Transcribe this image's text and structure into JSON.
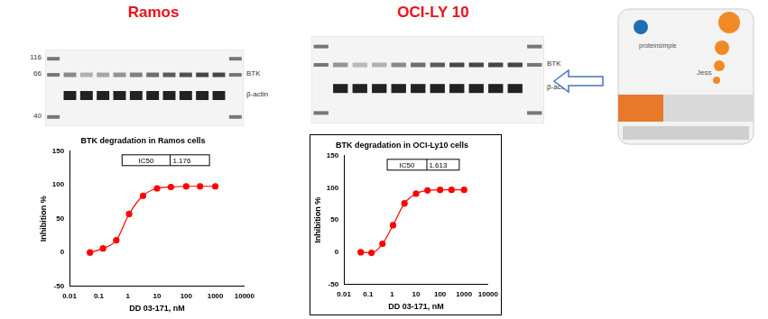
{
  "panels": [
    {
      "title": "Ramos",
      "blot": {
        "markers": [
          116,
          66,
          40
        ],
        "bands": [
          "BTK",
          "β-actin"
        ]
      }
    },
    {
      "title": "OCI-LY 10",
      "blot": {
        "bands": [
          "BTK",
          "β-actin"
        ]
      }
    }
  ],
  "device": {
    "brand": "proteinsimple",
    "name": "Jess"
  },
  "chart_data": [
    {
      "type": "line",
      "title": "BTK degradation in Ramos cells",
      "x_label": "DD 03-171, nM",
      "y_label": "Inhibition %",
      "x": [
        0.05,
        0.14,
        0.4,
        1.1,
        3.3,
        10,
        30,
        100,
        300,
        1000
      ],
      "series": [
        {
          "name": "Ramos",
          "color": "#ff0000",
          "marker": "circle",
          "line_style": "solid",
          "values": [
            0,
            6,
            18,
            57,
            84,
            95,
            97,
            98,
            98,
            98
          ]
        }
      ],
      "ic50_label": "IC50",
      "ic50": 1.176,
      "log": "x",
      "xlim": [
        0.01,
        10000
      ],
      "xticks": [
        0.01,
        0.1,
        1,
        10,
        100,
        1000,
        10000
      ],
      "ylim": [
        -50,
        150
      ],
      "yticks": [
        -50,
        0,
        50,
        100,
        150
      ],
      "grid": false
    },
    {
      "type": "line",
      "title": "BTK degradation in OCI-Ly10 cells",
      "x_label": "DD 03-171, nM",
      "y_label": "Inhibition %",
      "x": [
        0.05,
        0.14,
        0.4,
        1.1,
        3.3,
        10,
        30,
        100,
        300,
        1000
      ],
      "series": [
        {
          "name": "OCI-Ly10",
          "color": "#ff0000",
          "marker": "circle",
          "line_style": "solid",
          "values": [
            0,
            -1,
            13,
            42,
            76,
            91,
            96,
            97,
            97,
            97
          ]
        }
      ],
      "ic50_label": "IC50",
      "ic50": 1.613,
      "log": "x",
      "xlim": [
        0.01,
        10000
      ],
      "xticks": [
        0.01,
        0.1,
        1,
        10,
        100,
        1000,
        10000
      ],
      "ylim": [
        -50,
        150
      ],
      "yticks": [
        -50,
        0,
        50,
        100,
        150
      ],
      "grid": false
    }
  ]
}
